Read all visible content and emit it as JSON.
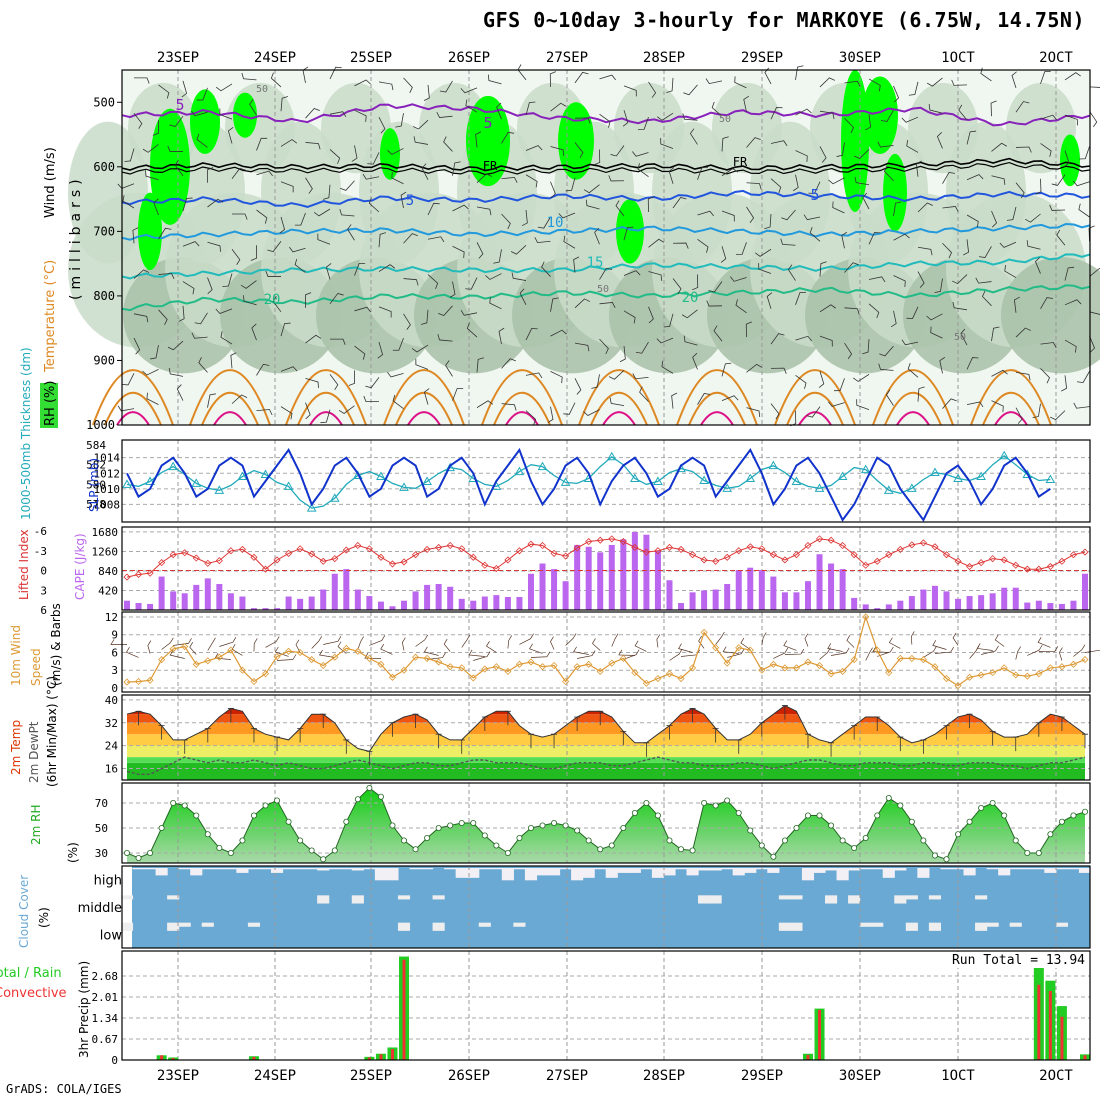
{
  "title": "GFS 0~10day 3-hourly for MARKOYE (6.75W, 14.75N)",
  "footer": "GrADS: COLA/IGES",
  "dates": [
    "23SEP",
    "24SEP",
    "25SEP",
    "26SEP",
    "27SEP",
    "28SEP",
    "29SEP",
    "30SEP",
    "1OCT",
    "2OCT"
  ],
  "colors": {
    "rh_light": "#f0f7f0",
    "rh_mid": "#c9dcc9",
    "rh_dark": "#a8bfa8",
    "rh_green": "#33dd33",
    "rh_bright": "#00ff00",
    "temp_purple": "#8822bb",
    "temp_black": "#000000",
    "temp_blue": "#2255dd",
    "temp_skyblue": "#2299dd",
    "temp_cyan": "#22bbbb",
    "temp_teal": "#22bb88",
    "temp_orange": "#dd8822",
    "temp_magenta": "#dd1188",
    "slp": "#1133cc",
    "thickness": "#22aabb",
    "lifted": "#dd3333",
    "cape": "#bb66ee",
    "wind10": "#dd9933",
    "precip_total": "#22cc22",
    "precip_conv": "#ee3333",
    "cloud": "#6aa9d4",
    "cloud_clear": "#eeeeee"
  },
  "chart_data": [
    {
      "type": "heatmap",
      "panel": "upper-air",
      "labels": [
        "RH (%)",
        "Temperature (°C)",
        "Wind (m/s)"
      ],
      "ylabel": "(millibars)",
      "y_ticks": [
        500,
        600,
        700,
        800,
        900,
        1000
      ],
      "ylim": [
        450,
        1000
      ],
      "contour_labels": [
        "5",
        "5",
        "FR",
        "FR",
        "5",
        "5",
        "10",
        "15",
        "20",
        "20",
        "50",
        "50",
        "50",
        "50"
      ],
      "isotherms": [
        {
          "name": "-5",
          "color": "temp_purple",
          "levels": [
            520,
            515,
            530,
            505,
            510,
            525,
            530,
            515,
            520,
            510,
            535,
            520
          ]
        },
        {
          "name": "0",
          "color": "temp_black",
          "levels": [
            602,
            597,
            600,
            598,
            603,
            600,
            598,
            602,
            600,
            597,
            590,
            598
          ]
        },
        {
          "name": "5",
          "color": "temp_blue",
          "levels": [
            655,
            650,
            660,
            648,
            652,
            645,
            650,
            640,
            645,
            650,
            642,
            645
          ]
        },
        {
          "name": "10",
          "color": "temp_skyblue",
          "levels": [
            710,
            705,
            700,
            698,
            705,
            700,
            695,
            700,
            705,
            700,
            695,
            690
          ]
        },
        {
          "name": "15",
          "color": "temp_cyan",
          "levels": [
            770,
            765,
            760,
            758,
            760,
            760,
            752,
            755,
            758,
            750,
            748,
            735
          ]
        },
        {
          "name": "20",
          "color": "temp_teal",
          "levels": [
            820,
            805,
            810,
            800,
            802,
            795,
            800,
            795,
            790,
            800,
            790,
            785
          ]
        }
      ]
    },
    {
      "type": "line",
      "panel": "slp-thickness",
      "labels": [
        "1000-500mb Thickness (dm)",
        "SLP (mb)"
      ],
      "left_ticks": [
        578,
        580,
        582,
        584
      ],
      "right_ticks": [
        1008,
        1010,
        1012,
        1014
      ],
      "slp": [
        1012,
        1009,
        1010,
        1013,
        1014,
        1012,
        1009,
        1010,
        1013,
        1014,
        1013,
        1009,
        1011,
        1013,
        1015,
        1012,
        1008,
        1010,
        1013,
        1014,
        1012,
        1009,
        1010,
        1013,
        1014,
        1013,
        1009,
        1010,
        1013,
        1014,
        1012,
        1008,
        1011,
        1013,
        1015,
        1011,
        1008,
        1010,
        1013,
        1014,
        1012,
        1008,
        1011,
        1013,
        1014,
        1012,
        1009,
        1010,
        1013,
        1014,
        1013,
        1009,
        1011,
        1013,
        1015,
        1012,
        1008,
        1010,
        1013,
        1014,
        1012,
        1009,
        1006,
        1008,
        1011,
        1014,
        1013,
        1010,
        1008,
        1006,
        1009,
        1012,
        1013,
        1011,
        1008,
        1010,
        1013,
        1014,
        1012,
        1009,
        1010
      ],
      "thickness": [
        580.0,
        579.8,
        580.3,
        581.2,
        581.8,
        581.0,
        580.1,
        579.6,
        579.4,
        579.9,
        580.8,
        581.4,
        581.0,
        580.2,
        579.8,
        578.4,
        577.6,
        577.8,
        578.6,
        580.0,
        580.9,
        581.3,
        580.8,
        580.1,
        579.7,
        579.6,
        580.3,
        581.1,
        581.7,
        581.5,
        580.6,
        580.0,
        579.8,
        580.4,
        581.3,
        582.0,
        581.8,
        580.9,
        580.2,
        580.1,
        580.6,
        581.8,
        582.8,
        582.0,
        580.6,
        580.0,
        580.3,
        581.2,
        581.6,
        581.3,
        580.4,
        579.9,
        579.6,
        579.8,
        580.6,
        581.5,
        581.9,
        581.2,
        580.3,
        579.8,
        579.6,
        579.9,
        580.8,
        581.7,
        581.5,
        580.4,
        579.4,
        579.1,
        579.6,
        580.5,
        581.2,
        581.0,
        580.6,
        580.4,
        580.8,
        582.0,
        582.9,
        582.0,
        581.0,
        580.4,
        580.5
      ]
    },
    {
      "type": "bar",
      "panel": "cape-lifted-index",
      "labels": [
        "Lifted Index",
        "CAPE (J/kg)"
      ],
      "left_ticks": [
        -6,
        -3,
        0,
        3,
        6
      ],
      "right_ticks": [
        420,
        840,
        1260,
        1680
      ],
      "cape": [
        200,
        150,
        130,
        720,
        400,
        360,
        540,
        680,
        560,
        360,
        290,
        40,
        40,
        40,
        290,
        240,
        290,
        440,
        780,
        880,
        440,
        300,
        180,
        80,
        200,
        400,
        540,
        560,
        500,
        240,
        200,
        290,
        320,
        280,
        280,
        780,
        1000,
        880,
        620,
        1400,
        1360,
        1240,
        1400,
        1520,
        1680,
        1620,
        1280,
        640,
        150,
        380,
        420,
        440,
        560,
        860,
        910,
        860,
        720,
        380,
        380,
        620,
        1200,
        1000,
        880,
        260,
        120,
        40,
        120,
        200,
        300,
        440,
        520,
        400,
        240,
        300,
        320,
        360,
        480,
        480,
        160,
        200,
        150,
        130,
        200,
        780
      ],
      "lifted": [
        1.0,
        0.6,
        0.4,
        -1.2,
        -2.4,
        -2.7,
        -1.9,
        -1.1,
        -1.5,
        -3.0,
        -3.2,
        -2.0,
        -0.2,
        -1.6,
        -2.6,
        -3.3,
        -2.5,
        -1.4,
        -1.8,
        -3.1,
        -3.8,
        -3.3,
        -2.0,
        -1.0,
        -1.3,
        -2.4,
        -3.2,
        -3.5,
        -3.8,
        -3.3,
        -2.0,
        -0.8,
        -0.3,
        -1.6,
        -3.0,
        -4.0,
        -3.8,
        -2.6,
        -2.2,
        -3.4,
        -4.4,
        -4.6,
        -4.8,
        -4.4,
        -3.5,
        -2.8,
        -3.0,
        -3.5,
        -3.2,
        -2.4,
        -1.6,
        -1.4,
        -2.0,
        -3.0,
        -3.6,
        -3.3,
        -2.4,
        -1.6,
        -2.4,
        -3.8,
        -4.8,
        -4.6,
        -3.8,
        -2.4,
        -0.8,
        -1.4,
        -2.4,
        -3.2,
        -3.9,
        -4.2,
        -3.6,
        -2.4,
        -1.4,
        -0.6,
        -1.2,
        -1.8,
        -1.6,
        -0.8,
        -0.2,
        -0.2,
        -0.6,
        -1.4,
        -2.4,
        -2.8
      ]
    },
    {
      "type": "line",
      "panel": "wind10m",
      "labels": [
        "10m Wind Speed (m/s) & Barbs"
      ],
      "left_ticks": [
        0,
        3,
        6,
        9,
        12
      ],
      "speed": [
        1.0,
        1.1,
        1.3,
        4.8,
        6.6,
        7.0,
        4.0,
        4.6,
        5.2,
        6.4,
        3.0,
        1.1,
        2.4,
        5.3,
        6.2,
        6.0,
        4.8,
        3.8,
        5.2,
        6.7,
        6.2,
        5.0,
        4.0,
        1.8,
        3.0,
        5.2,
        5.0,
        4.4,
        3.6,
        3.4,
        1.7,
        3.2,
        3.6,
        2.8,
        4.0,
        4.4,
        3.6,
        3.8,
        1.1,
        3.6,
        4.0,
        2.8,
        4.2,
        5.0,
        2.6,
        0.8,
        1.6,
        2.4,
        1.6,
        3.4,
        9.4,
        6.8,
        4.2,
        6.8,
        6.4,
        3.0,
        4.0,
        3.4,
        3.4,
        4.4,
        3.8,
        2.4,
        2.8,
        4.8,
        12.0,
        6.4,
        2.6,
        5.0,
        5.0,
        4.8,
        3.6,
        1.6,
        0.4,
        1.8,
        2.2,
        2.6,
        3.4,
        2.2,
        2.0,
        2.4,
        3.4,
        3.6,
        4.0,
        4.8
      ]
    },
    {
      "type": "area",
      "panel": "temp-dewpoint",
      "labels": [
        "2m Temp",
        "2m DewPt",
        "(6hr Min/Max) (°C)"
      ],
      "left_ticks": [
        16,
        24,
        32,
        40
      ],
      "temp": [
        35,
        36,
        35,
        31,
        26,
        26,
        28,
        30,
        34,
        37,
        36,
        30,
        28,
        27,
        26,
        30,
        35,
        35,
        32,
        26,
        23,
        22,
        28,
        32,
        34,
        35,
        33,
        28,
        26,
        26,
        30,
        34,
        36,
        36,
        31,
        28,
        27,
        28,
        31,
        34,
        36,
        36,
        34,
        29,
        25,
        25,
        28,
        31,
        35,
        37,
        35,
        30,
        26,
        26,
        28,
        32,
        35,
        38,
        36,
        28,
        26,
        25,
        28,
        31,
        34,
        34,
        31,
        27,
        25,
        26,
        28,
        31,
        34,
        35,
        33,
        29,
        27,
        27,
        28,
        32,
        35,
        34,
        31,
        28
      ],
      "dewpt": [
        15,
        14,
        14,
        16,
        18,
        20,
        19,
        18,
        19,
        18,
        18,
        19,
        18,
        17,
        18,
        17,
        16,
        16,
        17,
        18,
        19,
        18,
        17,
        16,
        17,
        18,
        18,
        17,
        17,
        18,
        19,
        19,
        18,
        18,
        18,
        17,
        16,
        16,
        17,
        18,
        18,
        18,
        17,
        17,
        18,
        19,
        20,
        19,
        18,
        18,
        17,
        17,
        17,
        18,
        18,
        17,
        16,
        17,
        18,
        19,
        19,
        18,
        17,
        17,
        18,
        18,
        18,
        17,
        17,
        18,
        18,
        17,
        17,
        18,
        18,
        18,
        17,
        17,
        16,
        17,
        18,
        18,
        19,
        20
      ]
    },
    {
      "type": "area",
      "panel": "rh2m",
      "labels": [
        "2m RH",
        "(%)"
      ],
      "left_ticks": [
        30,
        50,
        70
      ],
      "rh": [
        30,
        26,
        30,
        50,
        70,
        68,
        60,
        45,
        34,
        30,
        40,
        60,
        68,
        72,
        55,
        40,
        32,
        25,
        32,
        55,
        73,
        82,
        75,
        52,
        40,
        33,
        42,
        50,
        52,
        54,
        54,
        44,
        36,
        30,
        42,
        50,
        52,
        54,
        52,
        48,
        40,
        33,
        36,
        50,
        62,
        70,
        60,
        40,
        33,
        32,
        70,
        68,
        72,
        62,
        48,
        36,
        27,
        40,
        50,
        60,
        60,
        52,
        40,
        34,
        42,
        60,
        74,
        68,
        55,
        40,
        28,
        25,
        45,
        55,
        66,
        70,
        60,
        40,
        30,
        30,
        45,
        55,
        60,
        63
      ]
    },
    {
      "type": "heatmap",
      "panel": "cloud-cover",
      "labels": [
        "Cloud Cover",
        "(%)"
      ],
      "rows": [
        "high",
        "middle",
        "low"
      ]
    },
    {
      "type": "bar",
      "panel": "precip",
      "labels": [
        "Total / Rain",
        "Convective",
        "3hr Precip (mm)"
      ],
      "left_ticks": [
        0,
        0.67,
        1.34,
        2.01,
        2.68
      ],
      "run_total_label": "Run Total = 13.94",
      "total": [
        0,
        0,
        0,
        0.15,
        0.08,
        0,
        0,
        0,
        0,
        0,
        0,
        0.12,
        0,
        0,
        0,
        0,
        0,
        0,
        0,
        0,
        0,
        0.1,
        0.2,
        0.4,
        3.3,
        0,
        0,
        0,
        0,
        0,
        0,
        0,
        0,
        0,
        0,
        0,
        0,
        0,
        0,
        0,
        0,
        0,
        0,
        0,
        0,
        0,
        0,
        0,
        0,
        0,
        0,
        0,
        0,
        0,
        0,
        0,
        0,
        0,
        0,
        0.2,
        1.64,
        0,
        0,
        0,
        0,
        0,
        0,
        0,
        0,
        0,
        0,
        0,
        0,
        0,
        0,
        0,
        0,
        0,
        0,
        3.28,
        2.53,
        1.72,
        0,
        0.18
      ],
      "convective": [
        0,
        0,
        0,
        0.15,
        0.06,
        0,
        0,
        0,
        0,
        0,
        0,
        0.1,
        0,
        0,
        0,
        0,
        0,
        0,
        0,
        0,
        0,
        0.08,
        0.18,
        0.35,
        3.2,
        0,
        0,
        0,
        0,
        0,
        0,
        0,
        0,
        0,
        0,
        0,
        0,
        0,
        0,
        0,
        0,
        0,
        0,
        0,
        0,
        0,
        0,
        0,
        0,
        0,
        0,
        0,
        0,
        0,
        0,
        0,
        0,
        0,
        0,
        0.16,
        1.6,
        0,
        0,
        0,
        0,
        0,
        0,
        0,
        0,
        0,
        0,
        0,
        0,
        0,
        0,
        0,
        0,
        0,
        0,
        2.4,
        2.2,
        1.38,
        0,
        0.15
      ]
    }
  ]
}
